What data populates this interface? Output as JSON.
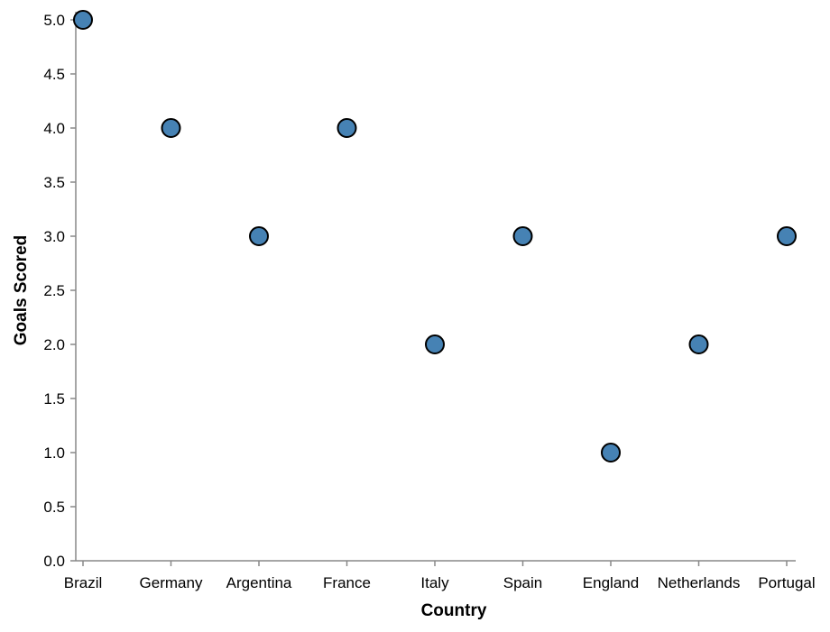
{
  "chart_data": {
    "type": "scatter",
    "title": "",
    "xlabel": "Country",
    "ylabel": "Goals Scored",
    "categories": [
      "Brazil",
      "Germany",
      "Argentina",
      "France",
      "Italy",
      "Spain",
      "England",
      "Netherlands",
      "Portugal"
    ],
    "values": [
      5,
      4,
      3,
      4,
      2,
      3,
      1,
      2,
      3
    ],
    "ylim": [
      0,
      5
    ],
    "yticks": [
      "0.0",
      "0.5",
      "1.0",
      "1.5",
      "2.0",
      "2.5",
      "3.0",
      "3.5",
      "4.0",
      "4.5",
      "5.0"
    ],
    "grid": false,
    "legend": "none",
    "point_color": "#4682b4",
    "point_stroke": "#000000"
  }
}
